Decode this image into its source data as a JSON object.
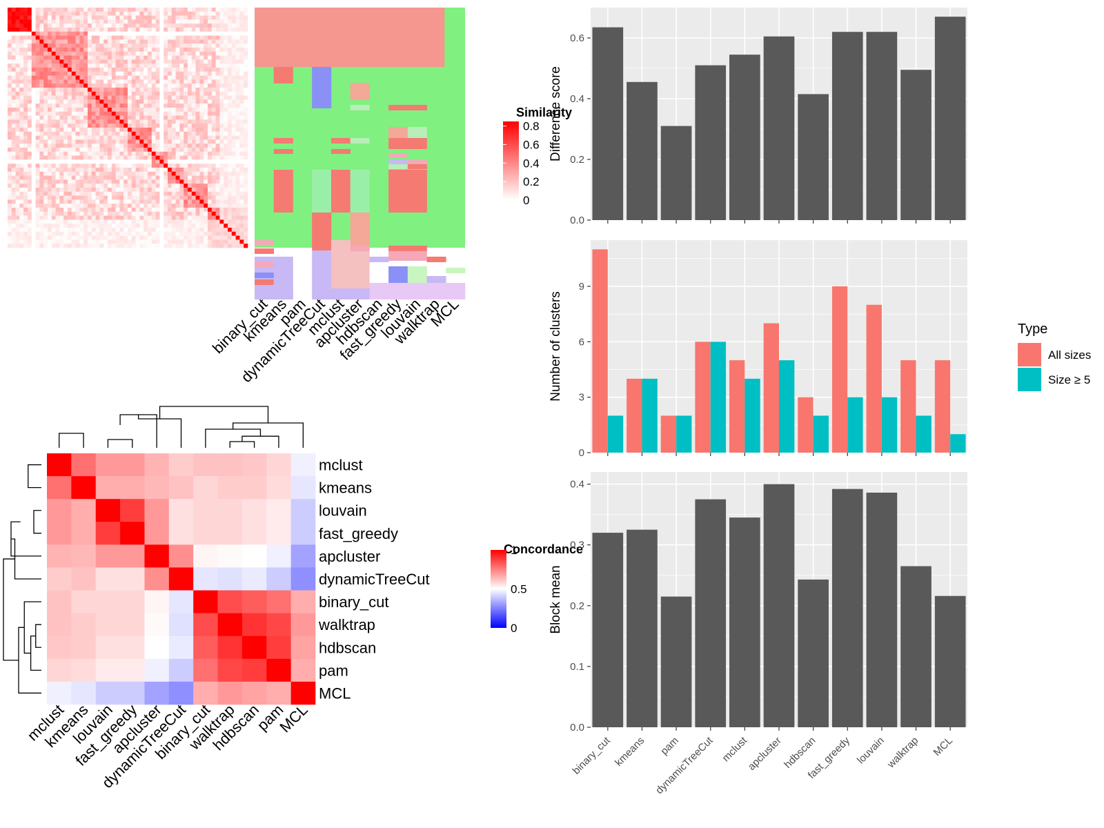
{
  "chart_data": [
    {
      "type": "heatmap",
      "panel": "similarity-matrix",
      "legend_title": "Similarity",
      "legend_ticks": [
        "0.8",
        "0.6",
        "0.4",
        "0.2",
        "0"
      ],
      "legend_range": [
        0,
        0.85
      ],
      "annotation_columns": [
        "binary_cut",
        "kmeans",
        "pam",
        "dynamicTreeCut",
        "mclust",
        "apcluster",
        "hdbscan",
        "fast_greedy",
        "louvain",
        "walktrap",
        "MCL"
      ]
    },
    {
      "type": "heatmap",
      "panel": "concordance-matrix",
      "legend_title": "Concordance",
      "legend_ticks": [
        "1",
        "0.5",
        "0"
      ],
      "labels": [
        "mclust",
        "kmeans",
        "louvain",
        "fast_greedy",
        "apcluster",
        "dynamicTreeCut",
        "binary_cut",
        "walktrap",
        "hdbscan",
        "pam",
        "MCL"
      ],
      "values": [
        [
          1.0,
          0.78,
          0.7,
          0.7,
          0.65,
          0.6,
          0.62,
          0.62,
          0.61,
          0.58,
          0.47
        ],
        [
          0.78,
          1.0,
          0.66,
          0.66,
          0.64,
          0.62,
          0.58,
          0.6,
          0.6,
          0.57,
          0.45
        ],
        [
          0.7,
          0.66,
          1.0,
          0.88,
          0.7,
          0.56,
          0.58,
          0.58,
          0.56,
          0.54,
          0.4
        ],
        [
          0.7,
          0.66,
          0.88,
          1.0,
          0.7,
          0.56,
          0.58,
          0.58,
          0.56,
          0.54,
          0.4
        ],
        [
          0.65,
          0.64,
          0.7,
          0.7,
          1.0,
          0.72,
          0.52,
          0.51,
          0.5,
          0.47,
          0.32
        ],
        [
          0.6,
          0.62,
          0.56,
          0.56,
          0.72,
          1.0,
          0.45,
          0.44,
          0.46,
          0.4,
          0.28
        ],
        [
          0.62,
          0.58,
          0.58,
          0.58,
          0.52,
          0.45,
          1.0,
          0.85,
          0.82,
          0.78,
          0.66
        ],
        [
          0.62,
          0.6,
          0.58,
          0.58,
          0.51,
          0.44,
          0.85,
          1.0,
          0.9,
          0.86,
          0.7
        ],
        [
          0.61,
          0.6,
          0.56,
          0.56,
          0.5,
          0.46,
          0.82,
          0.9,
          1.0,
          0.88,
          0.68
        ],
        [
          0.58,
          0.57,
          0.54,
          0.54,
          0.47,
          0.4,
          0.78,
          0.86,
          0.88,
          1.0,
          0.66
        ],
        [
          0.47,
          0.45,
          0.4,
          0.4,
          0.32,
          0.28,
          0.66,
          0.7,
          0.68,
          0.66,
          1.0
        ]
      ]
    },
    {
      "type": "bar",
      "panel": "difference-score",
      "categories": [
        "binary_cut",
        "kmeans",
        "pam",
        "dynamicTreeCut",
        "mclust",
        "apcluster",
        "hdbscan",
        "fast_greedy",
        "louvain",
        "walktrap",
        "MCL"
      ],
      "values": [
        0.635,
        0.455,
        0.31,
        0.51,
        0.545,
        0.605,
        0.415,
        0.62,
        0.62,
        0.495,
        0.67
      ],
      "ylabel": "Difference score",
      "ylim": [
        0,
        0.7
      ],
      "yticks": [
        "0.0",
        "0.2",
        "0.4",
        "0.6"
      ],
      "grid": true
    },
    {
      "type": "bar",
      "panel": "number-of-clusters",
      "categories": [
        "binary_cut",
        "kmeans",
        "pam",
        "dynamicTreeCut",
        "mclust",
        "apcluster",
        "hdbscan",
        "fast_greedy",
        "louvain",
        "walktrap",
        "MCL"
      ],
      "series": [
        {
          "name": "All sizes",
          "values": [
            11,
            4,
            2,
            6,
            5,
            7,
            3,
            9,
            8,
            5,
            5
          ]
        },
        {
          "name": "Size ≥ 5",
          "values": [
            2,
            4,
            2,
            6,
            4,
            5,
            2,
            3,
            3,
            2,
            1
          ]
        }
      ],
      "ylabel": "Number of clusters",
      "ylim": [
        0,
        11.5
      ],
      "yticks": [
        "0",
        "3",
        "6",
        "9"
      ],
      "legend_title": "Type",
      "legend_position": "right",
      "grid": true
    },
    {
      "type": "bar",
      "panel": "block-mean",
      "categories": [
        "binary_cut",
        "kmeans",
        "pam",
        "dynamicTreeCut",
        "mclust",
        "apcluster",
        "hdbscan",
        "fast_greedy",
        "louvain",
        "walktrap",
        "MCL"
      ],
      "values": [
        0.32,
        0.325,
        0.215,
        0.375,
        0.345,
        0.4,
        0.243,
        0.392,
        0.386,
        0.265,
        0.216
      ],
      "ylabel": "Block mean",
      "ylim": [
        0,
        0.42
      ],
      "yticks": [
        "0.0",
        "0.1",
        "0.2",
        "0.3",
        "0.4"
      ],
      "grid": true
    }
  ],
  "colors": {
    "bar_fill": "#595959",
    "panel_bg": "#ebebeb",
    "all_sizes": "#F8766D",
    "size_ge_5": "#00BFC4",
    "heat_high": "#ff0000",
    "heat_mid": "#ffffff",
    "heat_low": "#0000ff",
    "annot_green": "#80f080"
  }
}
